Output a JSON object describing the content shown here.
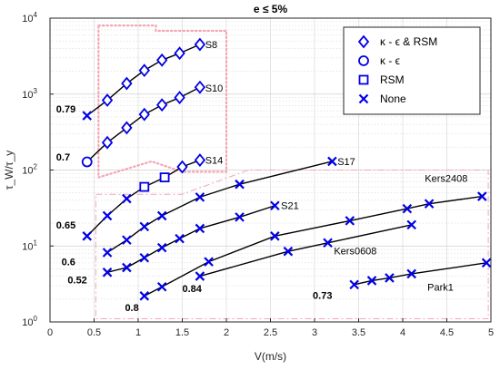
{
  "chart_data": {
    "type": "line",
    "title": "e ≤ 5%",
    "xlabel": "V(m/s)",
    "ylabel": "τ_W/τ_y",
    "xlim": [
      0,
      5
    ],
    "ylim": [
      1,
      10000
    ],
    "yscale": "log",
    "grid": true,
    "x_ticks": [
      "0",
      "0.5",
      "1",
      "1.5",
      "2",
      "2.5",
      "3",
      "3.5",
      "4",
      "4.5",
      "5"
    ],
    "y_ticks": [
      {
        "base": "10",
        "exp": "0"
      },
      {
        "base": "10",
        "exp": "1"
      },
      {
        "base": "10",
        "exp": "2"
      },
      {
        "base": "10",
        "exp": "3"
      },
      {
        "base": "10",
        "exp": "4"
      }
    ],
    "legend": {
      "placement": "top-right",
      "entries": [
        {
          "marker": "diamond",
          "label": "κ - ϵ & RSM"
        },
        {
          "marker": "circle",
          "label": "κ - ϵ"
        },
        {
          "marker": "square",
          "label": "RSM"
        },
        {
          "marker": "x",
          "label": "None"
        }
      ]
    },
    "colors": {
      "marker": "#0000e6",
      "line": "#000000",
      "region": "#f4a6b4"
    },
    "series": [
      {
        "points": [
          [
            0.42,
            520,
            "x"
          ],
          [
            0.65,
            830,
            "d"
          ],
          [
            0.87,
            1380,
            "d"
          ],
          [
            1.07,
            2050,
            "d"
          ],
          [
            1.27,
            2800,
            "d"
          ],
          [
            1.47,
            3450,
            "d"
          ],
          [
            1.7,
            4500,
            "d"
          ]
        ]
      },
      {
        "points": [
          [
            0.42,
            128,
            "o"
          ],
          [
            0.65,
            230,
            "d"
          ],
          [
            0.87,
            360,
            "d"
          ],
          [
            1.07,
            540,
            "d"
          ],
          [
            1.27,
            720,
            "d"
          ],
          [
            1.47,
            900,
            "d"
          ],
          [
            1.7,
            1230,
            "d"
          ]
        ]
      },
      {
        "points": [
          [
            0.42,
            13.5,
            "x"
          ],
          [
            0.65,
            25,
            "x"
          ],
          [
            0.87,
            42,
            "x"
          ],
          [
            1.07,
            60,
            "s"
          ],
          [
            1.3,
            80,
            "s"
          ],
          [
            1.5,
            110,
            "d"
          ],
          [
            1.7,
            135,
            "d"
          ]
        ]
      },
      {
        "points": [
          [
            0.65,
            8.2,
            "x"
          ],
          [
            0.87,
            12,
            "x"
          ],
          [
            1.07,
            18,
            "x"
          ],
          [
            1.27,
            25,
            "x"
          ],
          [
            1.7,
            44,
            "x"
          ],
          [
            2.15,
            65,
            "x"
          ],
          [
            3.2,
            130,
            "x"
          ]
        ]
      },
      {
        "points": [
          [
            0.65,
            4.5,
            "x"
          ],
          [
            0.87,
            5.2,
            "x"
          ],
          [
            1.07,
            7,
            "x"
          ],
          [
            1.27,
            9.5,
            "x"
          ],
          [
            1.47,
            12.5,
            "x"
          ],
          [
            1.7,
            17,
            "x"
          ],
          [
            2.15,
            24,
            "x"
          ],
          [
            2.55,
            34,
            "x"
          ]
        ]
      },
      {
        "points": [
          [
            1.07,
            2.2,
            "x"
          ],
          [
            1.27,
            2.9,
            "x"
          ],
          [
            1.8,
            6.2,
            "x"
          ],
          [
            2.55,
            13.5,
            "x"
          ],
          [
            3.4,
            21.5,
            "x"
          ],
          [
            4.05,
            31,
            "x"
          ],
          [
            4.3,
            36,
            "x"
          ],
          [
            4.9,
            45,
            "x"
          ]
        ]
      },
      {
        "points": [
          [
            1.7,
            4,
            "x"
          ],
          [
            2.7,
            8.5,
            "x"
          ],
          [
            3.15,
            11,
            "x"
          ],
          [
            4.1,
            19,
            "x"
          ]
        ]
      },
      {
        "points": [
          [
            3.45,
            3.1,
            "x"
          ],
          [
            3.65,
            3.5,
            "x"
          ],
          [
            3.85,
            3.8,
            "x"
          ],
          [
            4.1,
            4.3,
            "x"
          ],
          [
            4.95,
            6,
            "x"
          ]
        ]
      }
    ],
    "annotations": [
      {
        "text": "S8",
        "x": 1.76,
        "y": 4500,
        "bold": false
      },
      {
        "text": "S10",
        "x": 1.76,
        "y": 1200,
        "bold": false
      },
      {
        "text": "S14",
        "x": 1.76,
        "y": 135,
        "bold": false
      },
      {
        "text": "S17",
        "x": 3.26,
        "y": 130,
        "bold": false
      },
      {
        "text": "S21",
        "x": 2.62,
        "y": 34,
        "bold": false
      },
      {
        "text": "Kers2408",
        "x": 4.25,
        "y": 78,
        "bold": false
      },
      {
        "text": "Kers0608",
        "x": 3.22,
        "y": 8.6,
        "bold": false
      },
      {
        "text": "Park1",
        "x": 4.28,
        "y": 2.9,
        "bold": false
      },
      {
        "text": "0.79",
        "x": 0.07,
        "y": 640,
        "bold": true
      },
      {
        "text": "0.7",
        "x": 0.07,
        "y": 150,
        "bold": true
      },
      {
        "text": "0.65",
        "x": 0.07,
        "y": 19,
        "bold": true
      },
      {
        "text": "0.6",
        "x": 0.13,
        "y": 6.2,
        "bold": true
      },
      {
        "text": "0.52",
        "x": 0.2,
        "y": 3.6,
        "bold": true
      },
      {
        "text": "0.8",
        "x": 0.85,
        "y": 1.55,
        "bold": true
      },
      {
        "text": "0.84",
        "x": 1.5,
        "y": 2.75,
        "bold": true
      },
      {
        "text": "0.73",
        "x": 2.98,
        "y": 2.25,
        "bold": true
      }
    ]
  }
}
